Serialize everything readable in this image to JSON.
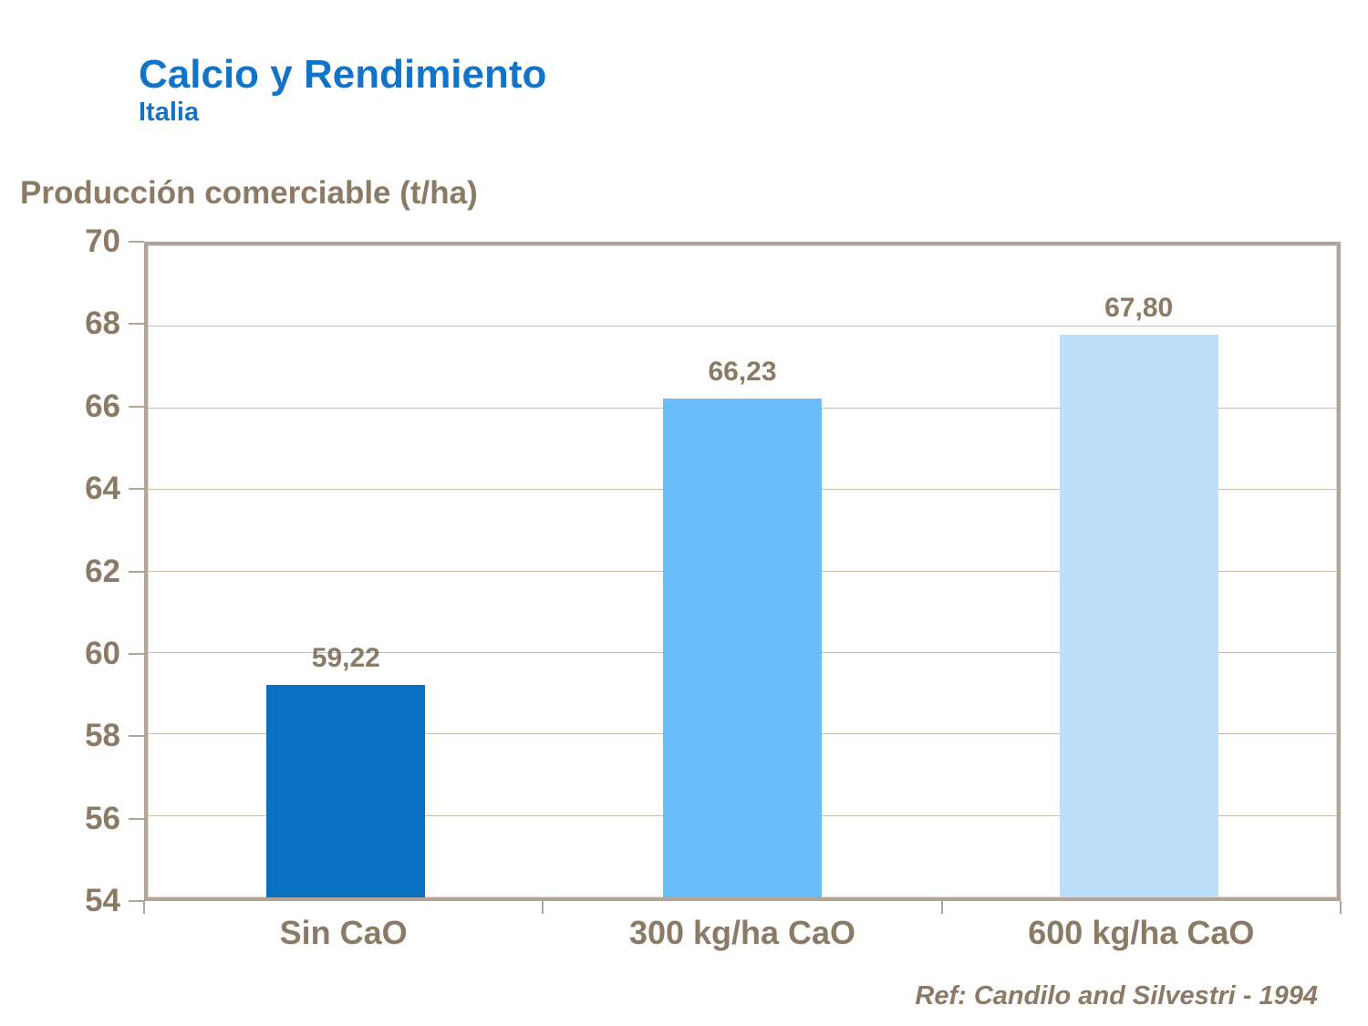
{
  "header": {
    "title": "Calcio y Rendimiento",
    "subtitle": "Italia"
  },
  "footer": {
    "reference": "Ref: Candilo and Silvestri - 1994"
  },
  "colors": {
    "title_blue": "#1274c8",
    "text_brown": "#8a7a66",
    "frame_tan": "#b2a496",
    "gridline_tan": "#c9bdae",
    "bar_colors": [
      "#0a70c0",
      "#69bef9",
      "#bedffa"
    ]
  },
  "chart_data": {
    "type": "bar",
    "title": "Calcio y Rendimiento",
    "subtitle": "Italia",
    "ylabel": "Producción comerciable (t/ha)",
    "xlabel": "",
    "categories": [
      "Sin CaO",
      "300 kg/ha CaO",
      "600 kg/ha CaO"
    ],
    "values": [
      59.22,
      66.23,
      67.8
    ],
    "value_labels": [
      "59,22",
      "66,23",
      "67,80"
    ],
    "ylim": [
      54,
      70
    ],
    "ytick_step": 2,
    "grid": true,
    "legend": false,
    "bar_width_fraction": 0.4,
    "reference": "Ref: Candilo and Silvestri - 1994"
  }
}
